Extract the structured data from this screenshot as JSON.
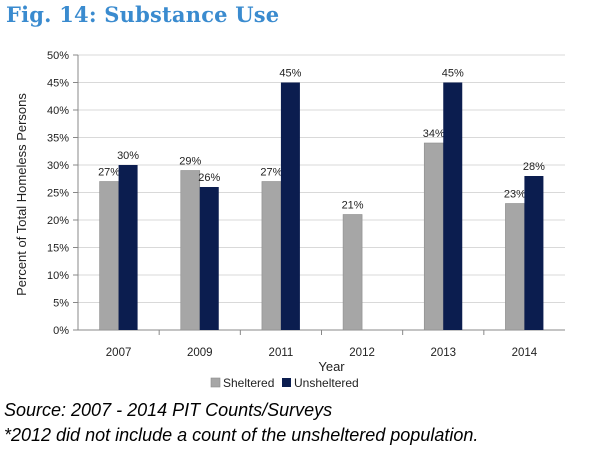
{
  "figure": {
    "title": "Fig. 14: Substance Use",
    "source": "Source: 2007 - 2014 PIT Counts/Surveys",
    "footnote": "*2012 did not include a count of the unsheltered population."
  },
  "colors": {
    "title": "#3a8bcf",
    "sheltered": "#a6a6a6",
    "unsheltered": "#0b1d4f",
    "grid": "#d9d9d9",
    "axis": "#888888",
    "text": "#222222"
  },
  "chart_data": {
    "type": "bar",
    "title": "",
    "xlabel": "Year",
    "ylabel": "Percent of Total Homeless Persons",
    "ylim": [
      0,
      50
    ],
    "yticks": [
      "0%",
      "5%",
      "10%",
      "15%",
      "20%",
      "25%",
      "30%",
      "35%",
      "40%",
      "45%",
      "50%"
    ],
    "categories": [
      "2007",
      "2009",
      "2011",
      "2012",
      "2013",
      "2014"
    ],
    "series": [
      {
        "name": "Sheltered",
        "values": [
          27,
          29,
          27,
          21,
          34,
          23
        ],
        "labels": [
          "27%",
          "29%",
          "27%",
          "21%",
          "34%",
          "23%"
        ]
      },
      {
        "name": "Unsheltered",
        "values": [
          30,
          26,
          45,
          null,
          45,
          28
        ],
        "labels": [
          "30%",
          "26%",
          "45%",
          "",
          "45%",
          "28%"
        ]
      }
    ],
    "grid": true,
    "legend": "bottom-center"
  }
}
